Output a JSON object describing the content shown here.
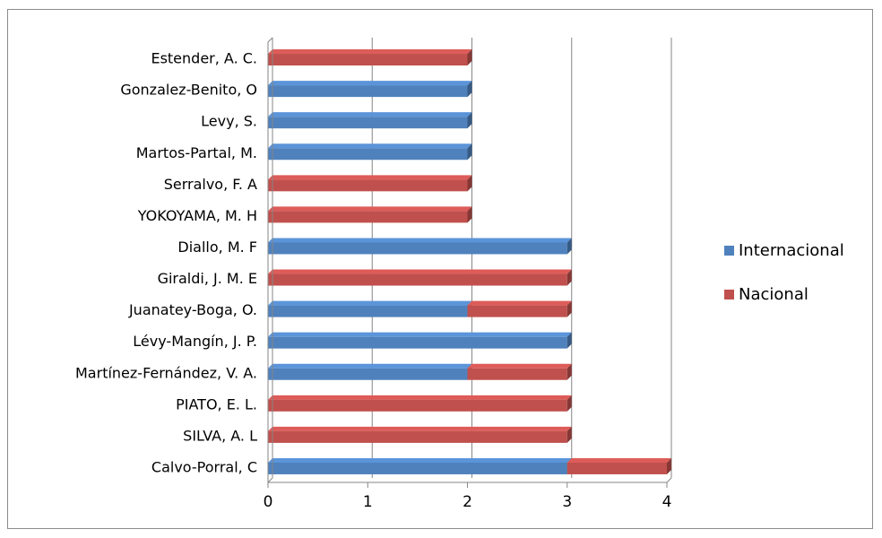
{
  "chart_data": {
    "type": "bar",
    "orientation": "horizontal",
    "stacked": true,
    "categories": [
      "Estender, A. C.",
      "Gonzalez-Benito, O",
      "Levy, S.",
      "Martos-Partal, M.",
      "Serralvo, F. A",
      "YOKOYAMA, M. H",
      "Diallo, M. F",
      "Giraldi, J. M. E",
      "Juanatey-Boga, O.",
      "Lévy-Mangín, J. P.",
      "Martínez-Fernández, V. A.",
      "PIATO, E. L.",
      "SILVA, A. L",
      "Calvo-Porral, C"
    ],
    "series": [
      {
        "name": "Internacional",
        "color": "#4f81bd",
        "values": [
          0,
          2,
          2,
          2,
          0,
          0,
          3,
          0,
          2,
          3,
          2,
          0,
          0,
          3
        ]
      },
      {
        "name": "Nacional",
        "color": "#c0504d",
        "values": [
          2,
          0,
          0,
          0,
          2,
          2,
          0,
          3,
          1,
          0,
          1,
          3,
          3,
          1
        ]
      }
    ],
    "xticks": [
      "0",
      "1",
      "2",
      "3",
      "4"
    ],
    "xlim": [
      0,
      4
    ],
    "grid": true,
    "legend_position": "right",
    "title": "",
    "xlabel": "",
    "ylabel": ""
  }
}
